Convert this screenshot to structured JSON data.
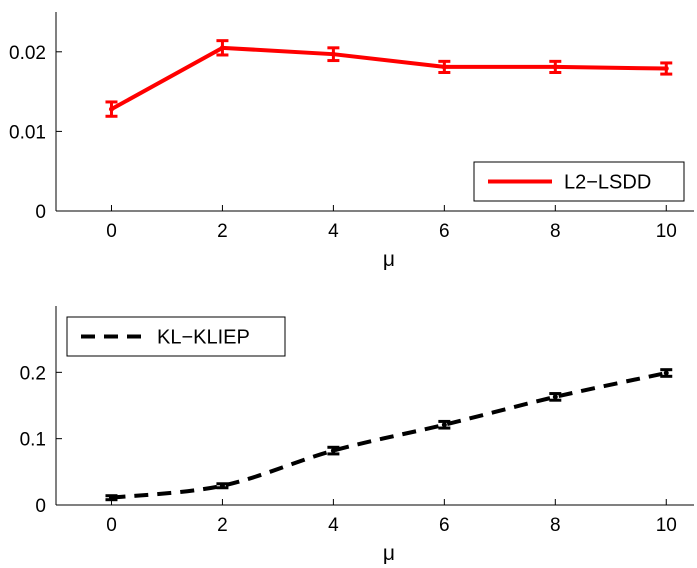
{
  "chart_data": [
    {
      "type": "line",
      "xlabel": "μ",
      "ylabel": "",
      "x": [
        0,
        2,
        4,
        6,
        8,
        10
      ],
      "xlim": [
        -1,
        10.5
      ],
      "ylim": [
        0,
        0.025
      ],
      "xticks": [
        0,
        2,
        4,
        6,
        8,
        10
      ],
      "xtick_labels": [
        "0",
        "2",
        "4",
        "6",
        "8",
        "10"
      ],
      "yticks": [
        0,
        0.01,
        0.02
      ],
      "ytick_labels": [
        "0",
        "0.01",
        "0.02"
      ],
      "grid": false,
      "legend_position": "bottom-right",
      "series": [
        {
          "name": "L2−LSDD",
          "color": "#ff0000",
          "line_style": "solid",
          "values": [
            0.0128,
            0.0205,
            0.0197,
            0.0181,
            0.0181,
            0.0179
          ],
          "errors": [
            0.0009,
            0.0009,
            0.0008,
            0.0007,
            0.0007,
            0.0007
          ]
        }
      ]
    },
    {
      "type": "line",
      "xlabel": "μ",
      "ylabel": "",
      "x": [
        0,
        2,
        4,
        6,
        8,
        10
      ],
      "xlim": [
        -1,
        10.5
      ],
      "ylim": [
        0,
        0.3
      ],
      "xticks": [
        0,
        2,
        4,
        6,
        8,
        10
      ],
      "xtick_labels": [
        "0",
        "2",
        "4",
        "6",
        "8",
        "10"
      ],
      "yticks": [
        0,
        0.1,
        0.2
      ],
      "ytick_labels": [
        "0",
        "0.1",
        "0.2"
      ],
      "grid": false,
      "legend_position": "top-left",
      "series": [
        {
          "name": "KL−KLIEP",
          "color": "#000000",
          "line_style": "dashed",
          "values": [
            0.011,
            0.029,
            0.082,
            0.121,
            0.163,
            0.199
          ],
          "errors": [
            0.003,
            0.003,
            0.005,
            0.005,
            0.005,
            0.005
          ]
        }
      ]
    }
  ]
}
